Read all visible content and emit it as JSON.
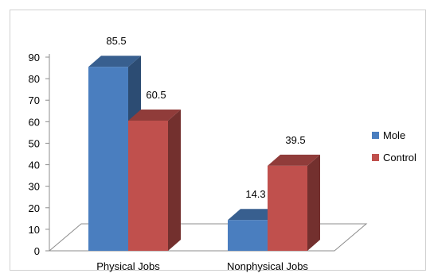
{
  "chart_data": {
    "type": "bar",
    "title": "",
    "xlabel": "",
    "ylabel": "",
    "categories": [
      "Physical Jobs",
      "Nonphysical Jobs"
    ],
    "series": [
      {
        "name": "Mole",
        "values": [
          85.5,
          14.3
        ],
        "color": "#4a7ebf"
      },
      {
        "name": "Control",
        "values": [
          60.5,
          39.5
        ],
        "color": "#c0504d"
      }
    ],
    "ylim": [
      0,
      90
    ],
    "yticks": [
      "0",
      "10",
      "20",
      "30",
      "40",
      "50",
      "60",
      "70",
      "80",
      "90"
    ],
    "data_labels": [
      [
        "85.5",
        "14.3"
      ],
      [
        "60.5",
        "39.5"
      ]
    ],
    "legend_position": "right",
    "style": "3d-clustered-column",
    "grid": false
  }
}
